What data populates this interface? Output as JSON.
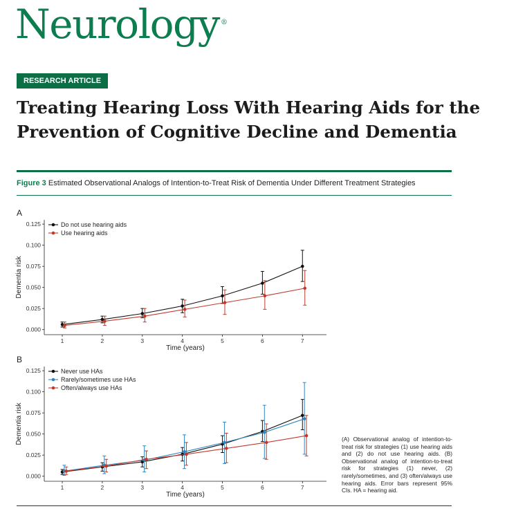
{
  "journal": {
    "name": "Neurology",
    "registered": "®"
  },
  "article_type": "RESEARCH ARTICLE",
  "article_title": "Treating Hearing Loss With Hearing Aids for the Prevention of Cognitive Decline and Dementia",
  "figure": {
    "label": "Figure 3",
    "caption": "Estimated Observational Analogs of Intention-to-Treat Risk of Dementia Under Different Treatment Strategies",
    "note": "(A) Observational analog of intention-to-treat risk for strategies (1) use hearing aids and (2) do not use hearing aids. (B) Observational analog of intention-to-treat risk for strategies (1) never, (2) rarely/sometimes, and (3) often/always use hearing aids. Error bars represent 95% CIs. HA = hearing aid."
  },
  "colors": {
    "brand": "#0c7d4f",
    "black_series": "#111111",
    "red_series": "#c0392b",
    "blue_series": "#2e86c1"
  },
  "chart_data": [
    {
      "panel": "A",
      "type": "line",
      "xlabel": "Time (years)",
      "ylabel": "Dementia risk",
      "x_ticks": [
        "1",
        "2",
        "3",
        "4",
        "5",
        "6",
        "7"
      ],
      "y_ticks": [
        "0.000",
        "0.025",
        "0.050",
        "0.075",
        "0.100",
        "0.125"
      ],
      "xlim": [
        0.55,
        7.6
      ],
      "ylim": [
        -0.006,
        0.13
      ],
      "legend_position": "top-left",
      "series": [
        {
          "name": "Do not use hearing aids",
          "color": "#111111",
          "x": [
            1,
            2,
            3,
            4,
            5,
            6,
            7
          ],
          "values": [
            0.006,
            0.012,
            0.019,
            0.028,
            0.04,
            0.055,
            0.075
          ],
          "lower": [
            0.003,
            0.008,
            0.014,
            0.02,
            0.031,
            0.042,
            0.057
          ],
          "upper": [
            0.009,
            0.016,
            0.025,
            0.036,
            0.051,
            0.069,
            0.094
          ]
        },
        {
          "name": "Use hearing aids",
          "color": "#c0392b",
          "x": [
            1.06,
            2.06,
            3.06,
            4.06,
            5.06,
            6.06,
            7.06
          ],
          "values": [
            0.005,
            0.01,
            0.016,
            0.024,
            0.032,
            0.04,
            0.049
          ],
          "lower": [
            0.002,
            0.005,
            0.009,
            0.015,
            0.018,
            0.024,
            0.029
          ],
          "upper": [
            0.009,
            0.016,
            0.025,
            0.035,
            0.047,
            0.058,
            0.07
          ]
        }
      ]
    },
    {
      "panel": "B",
      "type": "line",
      "xlabel": "Time (years)",
      "ylabel": "Dementia risk",
      "x_ticks": [
        "1",
        "2",
        "3",
        "4",
        "5",
        "6",
        "7"
      ],
      "y_ticks": [
        "0.000",
        "0.025",
        "0.050",
        "0.075",
        "0.100",
        "0.125"
      ],
      "xlim": [
        0.55,
        7.6
      ],
      "ylim": [
        -0.006,
        0.13
      ],
      "legend_position": "top-left",
      "series": [
        {
          "name": "Never use HAs",
          "color": "#111111",
          "x": [
            1,
            2,
            3,
            4,
            5,
            6,
            7
          ],
          "values": [
            0.005,
            0.011,
            0.017,
            0.026,
            0.038,
            0.053,
            0.072
          ],
          "lower": [
            0.002,
            0.006,
            0.011,
            0.018,
            0.028,
            0.041,
            0.055
          ],
          "upper": [
            0.008,
            0.016,
            0.023,
            0.034,
            0.048,
            0.066,
            0.091
          ]
        },
        {
          "name": "Rarely/sometimes use HAs",
          "color": "#2e86c1",
          "x": [
            1.05,
            2.05,
            3.05,
            4.05,
            5.05,
            6.05,
            7.05
          ],
          "values": [
            0.006,
            0.013,
            0.019,
            0.029,
            0.04,
            0.052,
            0.068
          ],
          "lower": [
            0.001,
            0.003,
            0.005,
            0.009,
            0.015,
            0.021,
            0.026
          ],
          "upper": [
            0.013,
            0.024,
            0.036,
            0.049,
            0.064,
            0.084,
            0.111
          ]
        },
        {
          "name": "Often/always use HAs",
          "color": "#c0392b",
          "x": [
            1.1,
            2.1,
            3.1,
            4.1,
            5.1,
            6.1,
            7.1
          ],
          "values": [
            0.006,
            0.012,
            0.02,
            0.026,
            0.033,
            0.04,
            0.048
          ],
          "lower": [
            0.002,
            0.005,
            0.009,
            0.013,
            0.016,
            0.02,
            0.024
          ],
          "upper": [
            0.011,
            0.02,
            0.03,
            0.04,
            0.051,
            0.062,
            0.072
          ]
        }
      ]
    }
  ]
}
